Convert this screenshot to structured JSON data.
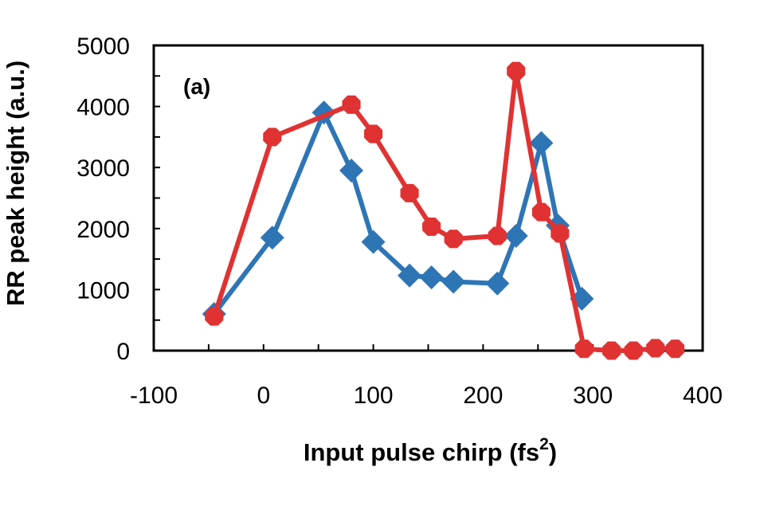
{
  "chart_data": {
    "type": "line",
    "panel_label": "(a)",
    "xlabel": "Input pulse chirp (fs",
    "xlabel_sup": "2",
    "xlabel_end": ")",
    "ylabel": "RR peak height (a.u.)",
    "xlim": [
      -100,
      400
    ],
    "ylim": [
      0,
      5000
    ],
    "xticks": [
      -100,
      0,
      100,
      200,
      300,
      400
    ],
    "yticks": [
      0,
      1000,
      2000,
      3000,
      4000,
      5000
    ],
    "xtick_labels": [
      "-100",
      "0",
      "100",
      "200",
      "300",
      "400"
    ],
    "ytick_labels": [
      "0",
      "1000",
      "2000",
      "3000",
      "4000",
      "5000"
    ],
    "series": [
      {
        "name": "blue",
        "color": "#2e75b6",
        "marker": "diamond",
        "x": [
          -45,
          8,
          55,
          80,
          100,
          133,
          153,
          173,
          213,
          230,
          253,
          268,
          290
        ],
        "y": [
          600,
          1850,
          3900,
          2950,
          1780,
          1230,
          1200,
          1130,
          1100,
          1880,
          3400,
          2050,
          850
        ]
      },
      {
        "name": "red",
        "color": "#e03232",
        "marker": "circle",
        "x": [
          -45,
          8,
          80,
          100,
          133,
          153,
          173,
          213,
          230,
          253,
          270,
          292,
          317,
          337,
          357,
          375
        ],
        "y": [
          560,
          3500,
          4030,
          3550,
          2580,
          2030,
          1830,
          1880,
          4580,
          2270,
          1920,
          30,
          0,
          0,
          40,
          30
        ]
      }
    ]
  }
}
